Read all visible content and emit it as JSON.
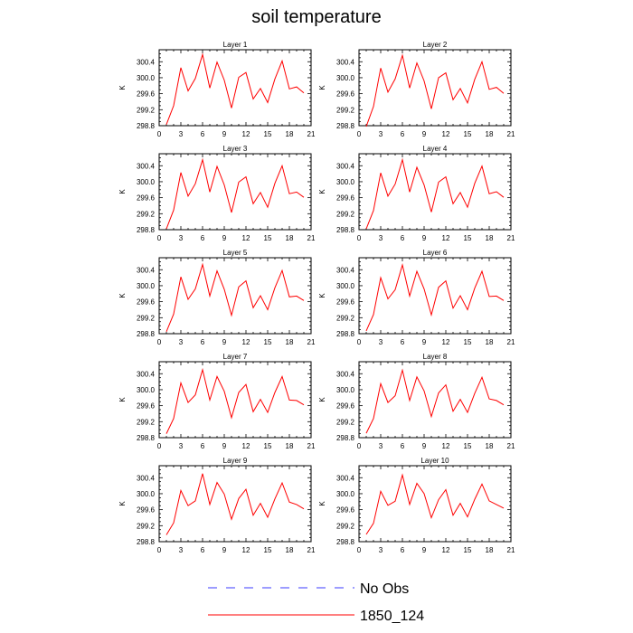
{
  "title": "soil temperature",
  "chart_data": {
    "type": "line",
    "title": "soil temperature",
    "ylabel": "K",
    "xlim": [
      0,
      21
    ],
    "ylim": [
      298.8,
      300.7
    ],
    "xticks": [
      0,
      3,
      6,
      9,
      12,
      15,
      18,
      21
    ],
    "yticks": [
      298.8,
      299.2,
      299.6,
      300.0,
      300.4
    ],
    "ytick_labels": [
      "298.8",
      "299.2",
      "299.6",
      "300.0",
      "300.4"
    ],
    "legend": [
      {
        "name": "No Obs",
        "color": "#3b3bff",
        "style": "dashed"
      },
      {
        "name": "1850_124",
        "color": "#ff0000",
        "style": "solid"
      }
    ],
    "x": [
      1,
      2,
      3,
      4,
      5,
      6,
      7,
      8,
      9,
      10,
      11,
      12,
      13,
      14,
      15,
      16,
      17,
      18,
      19,
      20
    ],
    "panels": [
      {
        "title": "Layer 1",
        "series": [
          {
            "name": "1850_124",
            "values": [
              298.83,
              299.3,
              300.25,
              299.67,
              299.98,
              300.58,
              299.74,
              300.39,
              299.94,
              299.24,
              300.01,
              300.13,
              299.47,
              299.73,
              299.38,
              299.97,
              300.42,
              299.72,
              299.77,
              299.62
            ]
          }
        ]
      },
      {
        "title": "Layer 2",
        "series": [
          {
            "name": "1850_124",
            "values": [
              298.78,
              299.28,
              300.24,
              299.64,
              299.97,
              300.56,
              299.74,
              300.37,
              299.92,
              299.22,
              300.0,
              300.12,
              299.45,
              299.73,
              299.37,
              299.96,
              300.4,
              299.71,
              299.76,
              299.61
            ]
          }
        ]
      },
      {
        "title": "Layer 3",
        "series": [
          {
            "name": "1850_124",
            "values": [
              298.82,
              299.29,
              300.23,
              299.64,
              299.95,
              300.55,
              299.74,
              300.38,
              299.92,
              299.23,
              299.99,
              300.12,
              299.45,
              299.73,
              299.36,
              299.96,
              300.4,
              299.7,
              299.74,
              299.61
            ]
          }
        ]
      },
      {
        "title": "Layer 4",
        "series": [
          {
            "name": "1850_124",
            "values": [
              298.82,
              299.28,
              300.22,
              299.64,
              299.94,
              300.55,
              299.74,
              300.36,
              299.92,
              299.24,
              299.99,
              300.12,
              299.45,
              299.73,
              299.36,
              299.96,
              300.39,
              299.7,
              299.75,
              299.61
            ]
          }
        ]
      },
      {
        "title": "Layer 5",
        "series": [
          {
            "name": "1850_124",
            "values": [
              298.85,
              299.29,
              300.22,
              299.66,
              299.92,
              300.53,
              299.74,
              300.37,
              299.91,
              299.26,
              299.97,
              300.12,
              299.45,
              299.75,
              299.4,
              299.95,
              300.38,
              299.72,
              299.74,
              299.63
            ]
          }
        ]
      },
      {
        "title": "Layer 6",
        "series": [
          {
            "name": "1850_124",
            "values": [
              298.87,
              299.28,
              300.2,
              299.67,
              299.9,
              300.52,
              299.74,
              300.36,
              299.92,
              299.27,
              299.96,
              300.12,
              299.44,
              299.75,
              299.4,
              299.94,
              300.36,
              299.73,
              299.74,
              299.63
            ]
          }
        ]
      },
      {
        "title": "Layer 7",
        "series": [
          {
            "name": "1850_124",
            "values": [
              298.9,
              299.28,
              300.17,
              299.68,
              299.87,
              300.5,
              299.74,
              300.33,
              299.96,
              299.3,
              299.93,
              300.13,
              299.45,
              299.76,
              299.43,
              299.93,
              300.33,
              299.74,
              299.73,
              299.62
            ]
          }
        ]
      },
      {
        "title": "Layer 8",
        "series": [
          {
            "name": "1850_124",
            "values": [
              298.91,
              299.28,
              300.15,
              299.68,
              299.85,
              300.49,
              299.73,
              300.32,
              299.97,
              299.33,
              299.92,
              300.12,
              299.46,
              299.76,
              299.43,
              299.91,
              300.31,
              299.77,
              299.73,
              299.62
            ]
          }
        ]
      },
      {
        "title": "Layer 9",
        "series": [
          {
            "name": "1850_124",
            "values": [
              298.97,
              299.27,
              300.08,
              299.7,
              299.82,
              300.5,
              299.73,
              300.28,
              299.99,
              299.36,
              299.88,
              300.11,
              299.46,
              299.76,
              299.41,
              299.87,
              300.27,
              299.79,
              299.73,
              299.62
            ]
          }
        ]
      },
      {
        "title": "Layer 10",
        "series": [
          {
            "name": "1850_124",
            "values": [
              298.98,
              299.26,
              300.06,
              299.71,
              299.81,
              300.47,
              299.73,
              300.26,
              300.0,
              299.4,
              299.85,
              300.1,
              299.46,
              299.76,
              299.42,
              299.86,
              300.24,
              299.82,
              299.73,
              299.64
            ]
          }
        ]
      }
    ]
  }
}
